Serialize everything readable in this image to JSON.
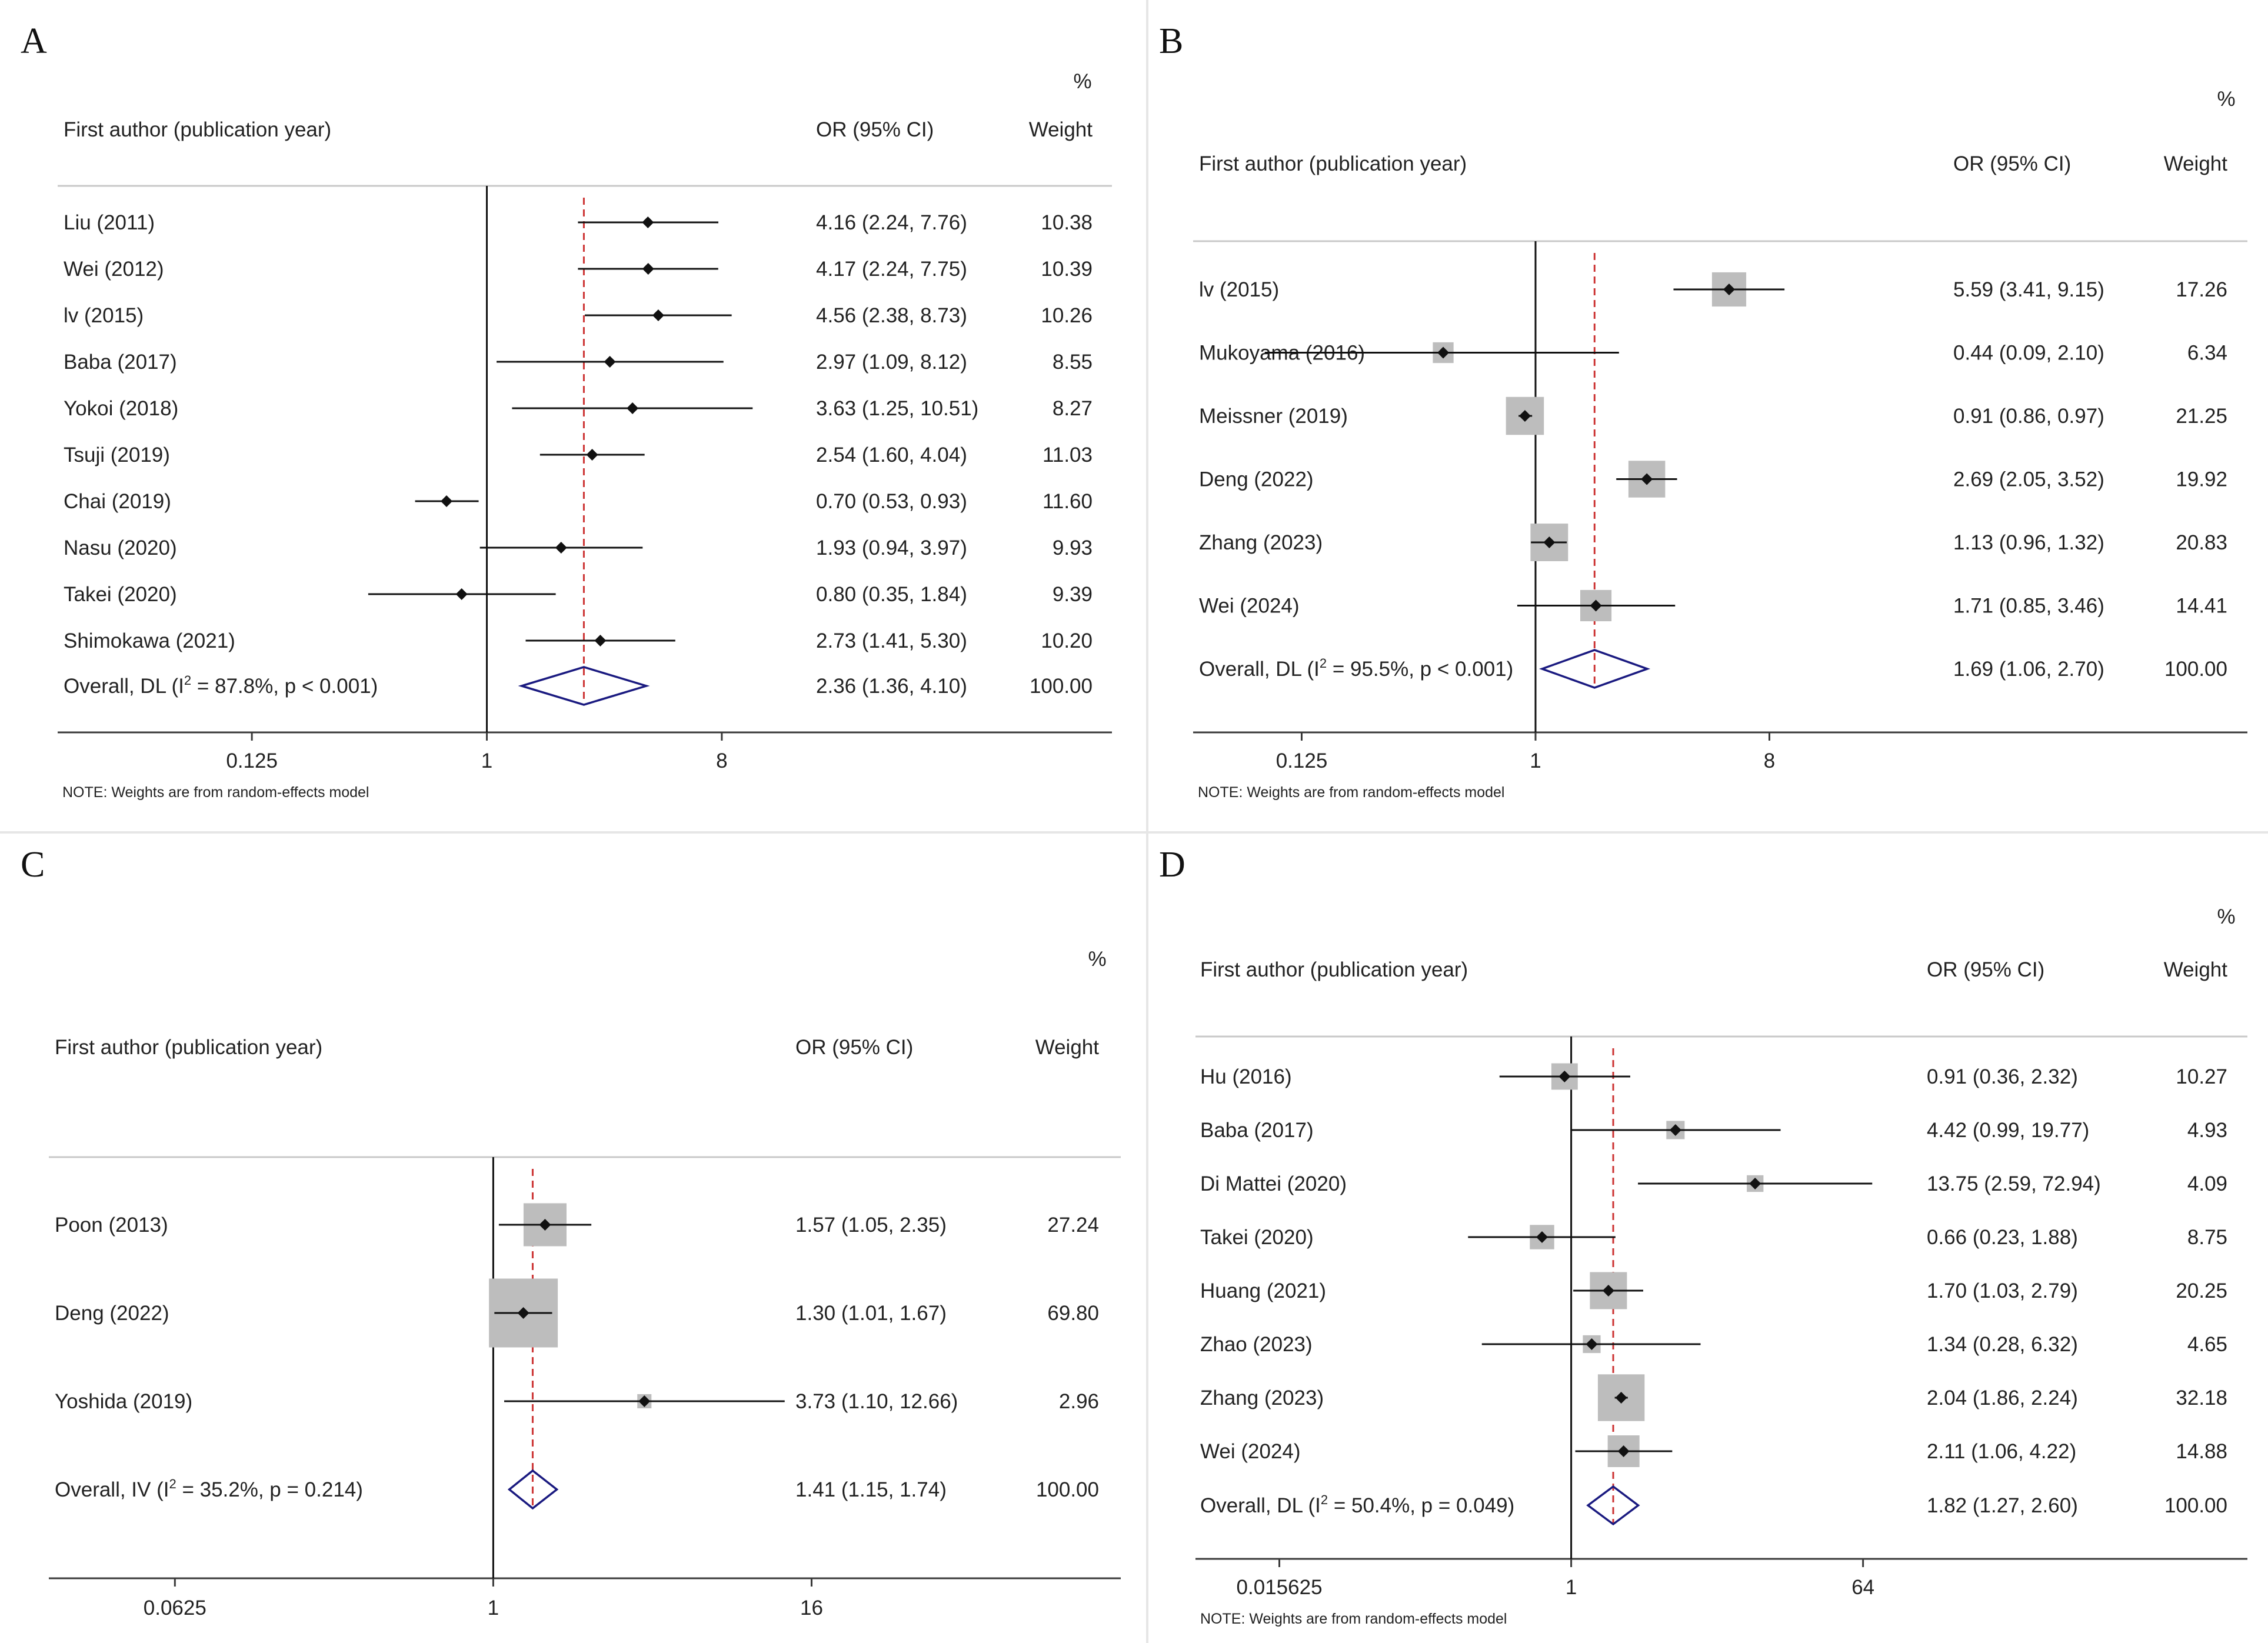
{
  "chart_data": [
    {
      "type": "forest",
      "panel": "A",
      "percent_label": "%",
      "header_study": "First author (publication year)",
      "header_ci": "OR (95% CI)",
      "header_weight": "Weight",
      "studies": [
        {
          "label": "Liu (2011)",
          "or": 4.16,
          "lo": 2.24,
          "hi": 7.76,
          "ci_text": "4.16 (2.24, 7.76)",
          "weight_text": "10.38"
        },
        {
          "label": "Wei (2012)",
          "or": 4.17,
          "lo": 2.24,
          "hi": 7.75,
          "ci_text": "4.17 (2.24, 7.75)",
          "weight_text": "10.39"
        },
        {
          "label": "lv (2015)",
          "or": 4.56,
          "lo": 2.38,
          "hi": 8.73,
          "ci_text": "4.56 (2.38, 8.73)",
          "weight_text": "10.26"
        },
        {
          "label": "Baba (2017)",
          "or": 2.97,
          "lo": 1.09,
          "hi": 8.12,
          "ci_text": "2.97 (1.09, 8.12)",
          "weight_text": "8.55"
        },
        {
          "label": "Yokoi (2018)",
          "or": 3.63,
          "lo": 1.25,
          "hi": 10.51,
          "ci_text": "3.63 (1.25, 10.51)",
          "weight_text": "8.27"
        },
        {
          "label": "Tsuji (2019)",
          "or": 2.54,
          "lo": 1.6,
          "hi": 4.04,
          "ci_text": "2.54 (1.60, 4.04)",
          "weight_text": "11.03"
        },
        {
          "label": "Chai (2019)",
          "or": 0.7,
          "lo": 0.53,
          "hi": 0.93,
          "ci_text": "0.70 (0.53, 0.93)",
          "weight_text": "11.60"
        },
        {
          "label": "Nasu (2020)",
          "or": 1.93,
          "lo": 0.94,
          "hi": 3.97,
          "ci_text": "1.93 (0.94, 3.97)",
          "weight_text": "9.93"
        },
        {
          "label": "Takei (2020)",
          "or": 0.8,
          "lo": 0.35,
          "hi": 1.84,
          "ci_text": "0.80 (0.35, 1.84)",
          "weight_text": "9.39"
        },
        {
          "label": "Shimokawa (2021)",
          "or": 2.73,
          "lo": 1.41,
          "hi": 5.3,
          "ci_text": "2.73 (1.41, 5.30)",
          "weight_text": "10.20"
        }
      ],
      "overall": {
        "label_prefix": "Overall, DL (I",
        "sup": "2",
        "label_suffix": " = 87.8%, p < 0.001)",
        "or": 2.36,
        "lo": 1.36,
        "hi": 4.1,
        "ci_text": "2.36 (1.36, 4.10)",
        "weight_text": "100.00"
      },
      "x_ticks": [
        {
          "value": 0.125,
          "label": "0.125"
        },
        {
          "value": 1,
          "label": "1"
        },
        {
          "value": 8,
          "label": "8"
        }
      ],
      "x_scale": "log",
      "x_range": [
        0.0625,
        16
      ],
      "show_square": false,
      "note": "NOTE: Weights are from random-effects model"
    },
    {
      "type": "forest",
      "panel": "B",
      "percent_label": "%",
      "header_study": "First author (publication year)",
      "header_ci": "OR (95% CI)",
      "header_weight": "Weight",
      "studies": [
        {
          "label": "lv (2015)",
          "or": 5.59,
          "lo": 3.41,
          "hi": 9.15,
          "ci_text": "5.59 (3.41, 9.15)",
          "weight_text": "17.26"
        },
        {
          "label": "Mukoyama (2016)",
          "or": 0.44,
          "lo": 0.09,
          "hi": 2.1,
          "ci_text": "0.44 (0.09, 2.10)",
          "weight_text": "6.34"
        },
        {
          "label": "Meissner (2019)",
          "or": 0.91,
          "lo": 0.86,
          "hi": 0.97,
          "ci_text": "0.91 (0.86, 0.97)",
          "weight_text": "21.25"
        },
        {
          "label": "Deng (2022)",
          "or": 2.69,
          "lo": 2.05,
          "hi": 3.52,
          "ci_text": "2.69 (2.05, 3.52)",
          "weight_text": "19.92"
        },
        {
          "label": "Zhang (2023)",
          "or": 1.13,
          "lo": 0.96,
          "hi": 1.32,
          "ci_text": "1.13 (0.96, 1.32)",
          "weight_text": "20.83"
        },
        {
          "label": "Wei (2024)",
          "or": 1.71,
          "lo": 0.85,
          "hi": 3.46,
          "ci_text": "1.71 (0.85, 3.46)",
          "weight_text": "14.41"
        }
      ],
      "overall": {
        "label_prefix": "Overall, DL (I",
        "sup": "2",
        "label_suffix": " = 95.5%, p < 0.001)",
        "or": 1.69,
        "lo": 1.06,
        "hi": 2.7,
        "ci_text": "1.69 (1.06, 2.70)",
        "weight_text": "100.00"
      },
      "x_ticks": [
        {
          "value": 0.125,
          "label": "0.125"
        },
        {
          "value": 1,
          "label": "1"
        },
        {
          "value": 8,
          "label": "8"
        }
      ],
      "x_scale": "log",
      "x_range": [
        0.0625,
        16
      ],
      "show_square": true,
      "note": "NOTE: Weights are from random-effects model"
    },
    {
      "type": "forest",
      "panel": "C",
      "percent_label": "%",
      "header_study": "First author (publication year)",
      "header_ci": "OR (95% CI)",
      "header_weight": "Weight",
      "studies": [
        {
          "label": "Poon (2013)",
          "or": 1.57,
          "lo": 1.05,
          "hi": 2.35,
          "ci_text": "1.57 (1.05, 2.35)",
          "weight_text": "27.24"
        },
        {
          "label": "Deng (2022)",
          "or": 1.3,
          "lo": 1.01,
          "hi": 1.67,
          "ci_text": "1.30 (1.01, 1.67)",
          "weight_text": "69.80"
        },
        {
          "label": "Yoshida (2019)",
          "or": 3.73,
          "lo": 1.1,
          "hi": 12.66,
          "ci_text": "3.73 (1.10, 12.66)",
          "weight_text": "2.96"
        }
      ],
      "overall": {
        "label_prefix": "Overall, IV (I",
        "sup": "2",
        "label_suffix": " = 35.2%, p = 0.214)",
        "or": 1.41,
        "lo": 1.15,
        "hi": 1.74,
        "ci_text": "1.41 (1.15, 1.74)",
        "weight_text": "100.00"
      },
      "x_ticks": [
        {
          "value": 0.0625,
          "label": "0.0625"
        },
        {
          "value": 1,
          "label": "1"
        },
        {
          "value": 16,
          "label": "16"
        }
      ],
      "x_scale": "log",
      "x_range": [
        0.0195,
        64
      ],
      "show_square": true,
      "note": ""
    },
    {
      "type": "forest",
      "panel": "D",
      "percent_label": "%",
      "header_study": "First author (publication year)",
      "header_ci": "OR (95% CI)",
      "header_weight": "Weight",
      "studies": [
        {
          "label": "Hu (2016)",
          "or": 0.91,
          "lo": 0.36,
          "hi": 2.32,
          "ci_text": "0.91 (0.36, 2.32)",
          "weight_text": "10.27"
        },
        {
          "label": "Baba (2017)",
          "or": 4.42,
          "lo": 0.99,
          "hi": 19.77,
          "ci_text": "4.42 (0.99, 19.77)",
          "weight_text": "4.93"
        },
        {
          "label": "Di Mattei (2020)",
          "or": 13.75,
          "lo": 2.59,
          "hi": 72.94,
          "ci_text": "13.75 (2.59, 72.94)",
          "weight_text": "4.09"
        },
        {
          "label": "Takei (2020)",
          "or": 0.66,
          "lo": 0.23,
          "hi": 1.88,
          "ci_text": "0.66 (0.23, 1.88)",
          "weight_text": "8.75"
        },
        {
          "label": "Huang (2021)",
          "or": 1.7,
          "lo": 1.03,
          "hi": 2.79,
          "ci_text": "1.70 (1.03, 2.79)",
          "weight_text": "20.25"
        },
        {
          "label": "Zhao (2023)",
          "or": 1.34,
          "lo": 0.28,
          "hi": 6.32,
          "ci_text": "1.34 (0.28, 6.32)",
          "weight_text": "4.65"
        },
        {
          "label": "Zhang (2023)",
          "or": 2.04,
          "lo": 1.86,
          "hi": 2.24,
          "ci_text": "2.04 (1.86, 2.24)",
          "weight_text": "32.18"
        },
        {
          "label": "Wei (2024)",
          "or": 2.11,
          "lo": 1.06,
          "hi": 4.22,
          "ci_text": "2.11 (1.06, 4.22)",
          "weight_text": "14.88"
        }
      ],
      "overall": {
        "label_prefix": "Overall, DL (I",
        "sup": "2",
        "label_suffix": " = 50.4%, p = 0.049)",
        "or": 1.82,
        "lo": 1.27,
        "hi": 2.6,
        "ci_text": "1.82 (1.27, 2.60)",
        "weight_text": "100.00"
      },
      "x_ticks": [
        {
          "value": 0.015625,
          "label": "0.015625"
        },
        {
          "value": 1,
          "label": "1"
        },
        {
          "value": 64,
          "label": "64"
        }
      ],
      "x_scale": "log",
      "x_range": [
        0.0055,
        180
      ],
      "show_square": true,
      "note": "NOTE: Weights are from random-effects model"
    }
  ]
}
